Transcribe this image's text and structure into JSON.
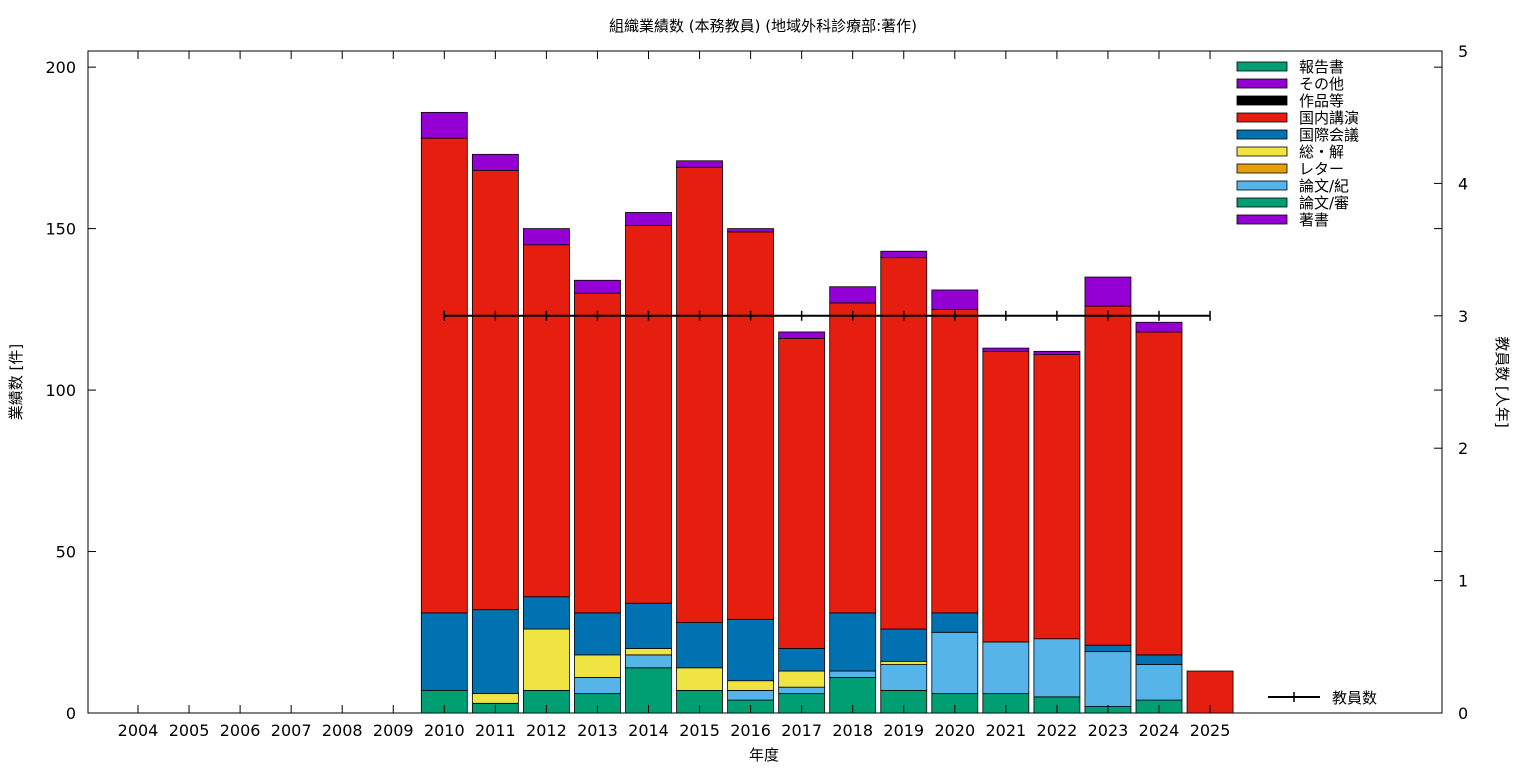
{
  "chart_data": {
    "type": "bar",
    "stacked": true,
    "title": "組織業績数 (本務教員) (地域外科診療部:著作)",
    "xlabel": "年度",
    "ylabel": "業績数 [件]",
    "y2label": "教員数 [人年]",
    "ylim": [
      0,
      205
    ],
    "y2lim": [
      0,
      5
    ],
    "yticks": [
      0,
      50,
      100,
      150,
      200
    ],
    "y2ticks": [
      0,
      1,
      2,
      3,
      4,
      5
    ],
    "grid": false,
    "legend_position": "top-right",
    "categories": [
      "2004",
      "2005",
      "2006",
      "2007",
      "2008",
      "2009",
      "2010",
      "2011",
      "2012",
      "2013",
      "2014",
      "2015",
      "2016",
      "2017",
      "2018",
      "2019",
      "2020",
      "2021",
      "2022",
      "2023",
      "2024",
      "2025"
    ],
    "series": [
      {
        "name": "論文/審",
        "color": "#009e73",
        "values": [
          0,
          0,
          0,
          0,
          0,
          0,
          7,
          3,
          7,
          6,
          14,
          7,
          4,
          6,
          11,
          7,
          6,
          6,
          5,
          2,
          4,
          0
        ]
      },
      {
        "name": "論文/紀",
        "color": "#56b4e9",
        "values": [
          0,
          0,
          0,
          0,
          0,
          0,
          0,
          0,
          0,
          5,
          4,
          0,
          3,
          2,
          2,
          8,
          19,
          16,
          18,
          17,
          11,
          0
        ]
      },
      {
        "name": "レター",
        "color": "#e69f00",
        "values": [
          0,
          0,
          0,
          0,
          0,
          0,
          0,
          0,
          0,
          0,
          0,
          0,
          0,
          0,
          0,
          0,
          0,
          0,
          0,
          0,
          0,
          0
        ]
      },
      {
        "name": "総・解",
        "color": "#f0e442",
        "values": [
          0,
          0,
          0,
          0,
          0,
          0,
          0,
          3,
          19,
          7,
          2,
          7,
          3,
          5,
          0,
          1,
          0,
          0,
          0,
          0,
          0,
          0
        ]
      },
      {
        "name": "国際会議",
        "color": "#0072b2",
        "values": [
          0,
          0,
          0,
          0,
          0,
          0,
          24,
          26,
          10,
          13,
          14,
          14,
          19,
          7,
          18,
          10,
          6,
          0,
          0,
          2,
          3,
          0
        ]
      },
      {
        "name": "国内講演",
        "color": "#e51e10",
        "values": [
          0,
          0,
          0,
          0,
          0,
          0,
          147,
          136,
          109,
          99,
          117,
          141,
          120,
          96,
          96,
          115,
          94,
          90,
          88,
          105,
          100,
          13
        ]
      },
      {
        "name": "作品等",
        "color": "#000000",
        "values": [
          0,
          0,
          0,
          0,
          0,
          0,
          0,
          0,
          0,
          0,
          0,
          0,
          0,
          0,
          0,
          0,
          0,
          0,
          0,
          0,
          0,
          0
        ]
      },
      {
        "name": "その他",
        "color": "#9400d3",
        "values": [
          0,
          0,
          0,
          0,
          0,
          0,
          0,
          0,
          0,
          0,
          0,
          0,
          0,
          0,
          0,
          0,
          0,
          0,
          0,
          0,
          0,
          0
        ]
      },
      {
        "name": "報告書",
        "color": "#009e73",
        "values": [
          0,
          0,
          0,
          0,
          0,
          0,
          0,
          0,
          0,
          0,
          0,
          0,
          0,
          0,
          0,
          0,
          0,
          0,
          0,
          0,
          0,
          0
        ]
      },
      {
        "name": "著書",
        "color": "#9400d3",
        "values": [
          0,
          0,
          0,
          0,
          0,
          0,
          8,
          5,
          5,
          4,
          4,
          2,
          1,
          2,
          5,
          2,
          6,
          1,
          1,
          9,
          3,
          0
        ]
      }
    ],
    "legend_order": [
      "報告書",
      "その他",
      "作品等",
      "国内講演",
      "国際会議",
      "総・解",
      "レター",
      "論文/紀",
      "論文/審",
      "著書"
    ],
    "line_series": {
      "name": "教員数",
      "color": "#000000",
      "axis": "y2",
      "categories": [
        "2010",
        "2011",
        "2012",
        "2013",
        "2014",
        "2015",
        "2016",
        "2017",
        "2018",
        "2019",
        "2020",
        "2021",
        "2022",
        "2023",
        "2024",
        "2025"
      ],
      "values": [
        3,
        3,
        3,
        3,
        3,
        3,
        3,
        3,
        3,
        3,
        3,
        3,
        3,
        3,
        3,
        3
      ]
    }
  }
}
